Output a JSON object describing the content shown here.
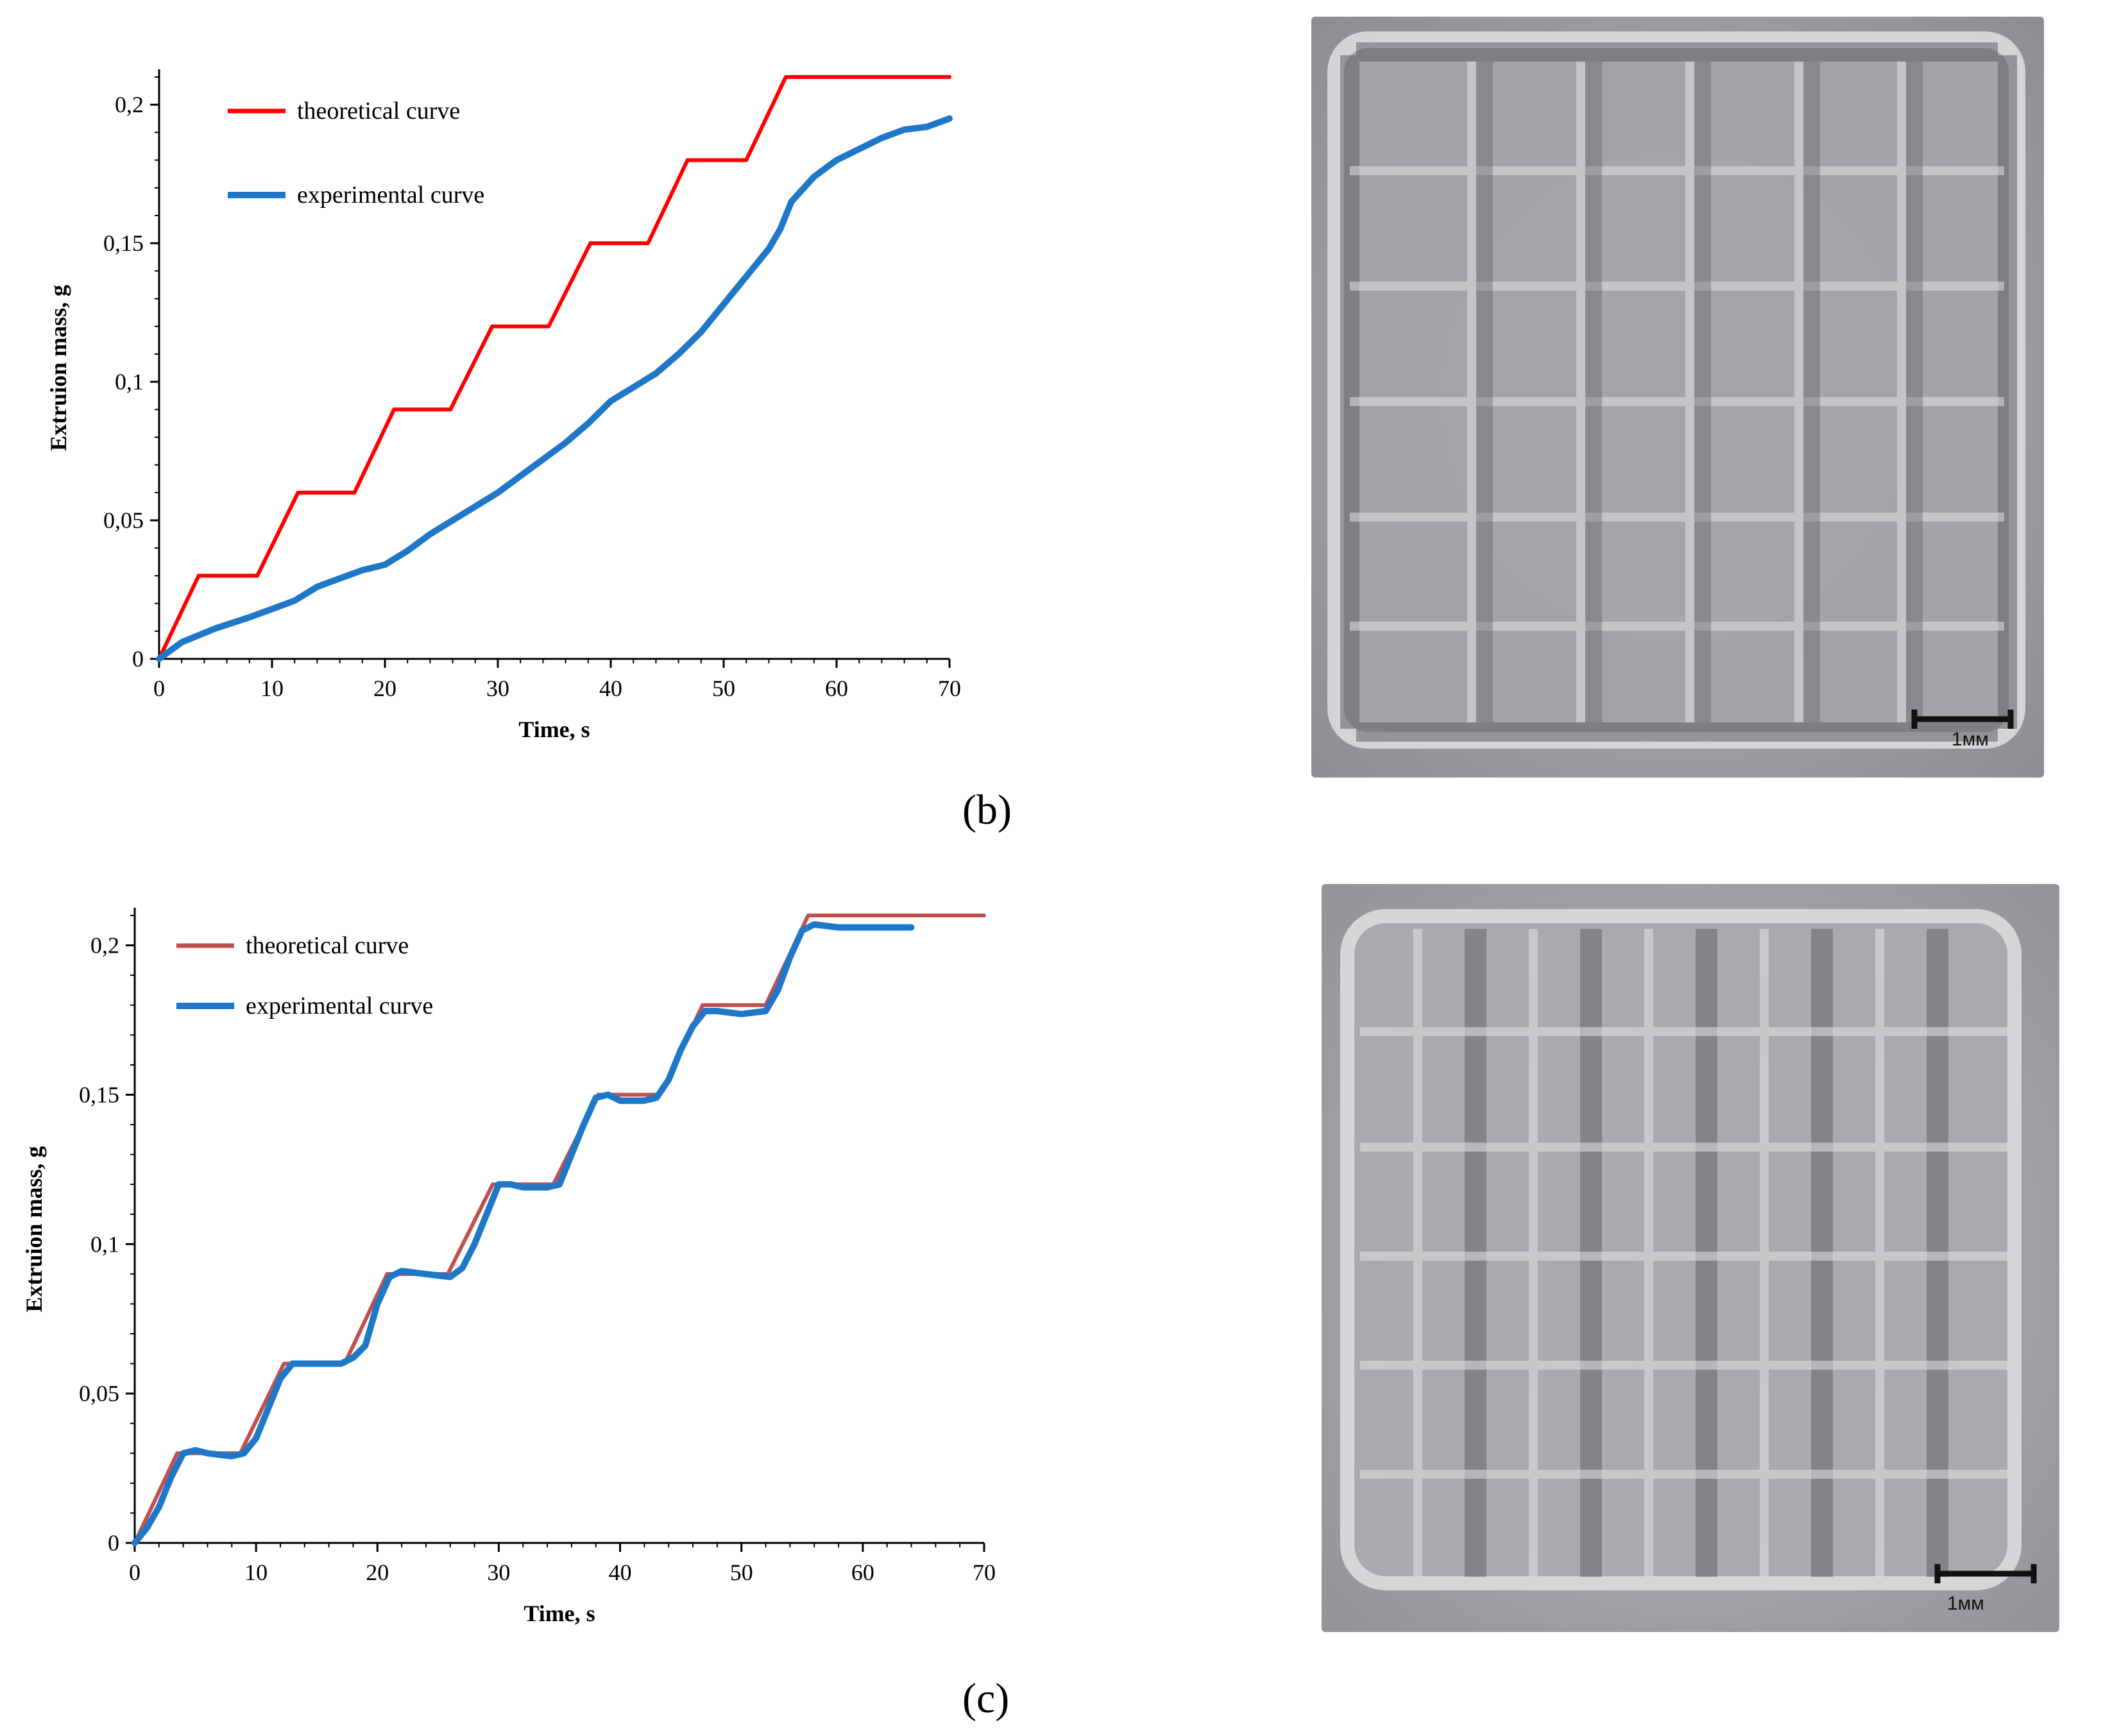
{
  "chart_data": [
    {
      "type": "line",
      "panel": "(b)",
      "title": "",
      "xlabel": "Time, s",
      "ylabel": "Extruion mass, g",
      "xlim": [
        0,
        70
      ],
      "ylim": [
        0,
        0.21
      ],
      "xticks": [
        "0",
        "10",
        "20",
        "30",
        "40",
        "50",
        "60",
        "70"
      ],
      "yticks": [
        "0",
        "0,05",
        "0,1",
        "0,15",
        "0,2"
      ],
      "grid": false,
      "legend_position": "top-left",
      "series": [
        {
          "name": "theoretical curve",
          "color": "#ff0000",
          "x": [
            0,
            3.5,
            8.7,
            12.3,
            17.3,
            20.8,
            25.8,
            29.5,
            34.5,
            38.2,
            43.3,
            46.8,
            52,
            55.5,
            70
          ],
          "y": [
            0,
            0.03,
            0.03,
            0.06,
            0.06,
            0.09,
            0.09,
            0.12,
            0.12,
            0.15,
            0.15,
            0.18,
            0.18,
            0.21,
            0.21
          ]
        },
        {
          "name": "experimental curve",
          "color": "#1f77c8",
          "x": [
            0,
            2,
            5,
            8,
            10,
            12,
            14,
            16,
            18,
            20,
            22,
            24,
            26,
            28,
            30,
            32,
            34,
            36,
            38,
            40,
            42,
            44,
            46,
            48,
            50,
            52,
            54,
            55,
            56,
            58,
            60,
            62,
            64,
            66,
            68,
            70
          ],
          "y": [
            0,
            0.006,
            0.011,
            0.015,
            0.018,
            0.021,
            0.026,
            0.029,
            0.032,
            0.034,
            0.039,
            0.045,
            0.05,
            0.055,
            0.06,
            0.066,
            0.072,
            0.078,
            0.085,
            0.093,
            0.098,
            0.103,
            0.11,
            0.118,
            0.128,
            0.138,
            0.148,
            0.155,
            0.165,
            0.174,
            0.18,
            0.184,
            0.188,
            0.191,
            0.192,
            0.195
          ]
        }
      ]
    },
    {
      "type": "line",
      "panel": "(c)",
      "title": "",
      "xlabel": "Time, s",
      "ylabel": "Extruion mass, g",
      "xlim": [
        0,
        70
      ],
      "ylim": [
        0,
        0.21
      ],
      "xticks": [
        "0",
        "10",
        "20",
        "30",
        "40",
        "50",
        "60",
        "70"
      ],
      "yticks": [
        "0",
        "0,05",
        "0,1",
        "0,15",
        "0,2"
      ],
      "grid": false,
      "legend_position": "top-left",
      "series": [
        {
          "name": "theoretical curve",
          "color": "#c0504d",
          "x": [
            0,
            3.5,
            8.7,
            12.3,
            17.3,
            20.8,
            25.8,
            29.5,
            34.5,
            38.2,
            43.3,
            46.8,
            52,
            55.5,
            70
          ],
          "y": [
            0,
            0.03,
            0.03,
            0.06,
            0.06,
            0.09,
            0.09,
            0.12,
            0.12,
            0.15,
            0.15,
            0.18,
            0.18,
            0.21,
            0.21
          ]
        },
        {
          "name": "experimental curve",
          "color": "#1f77c8",
          "x": [
            0,
            1,
            2,
            3,
            4,
            5,
            6,
            8,
            9,
            10,
            11,
            12,
            13,
            15,
            17,
            18,
            19,
            20,
            21,
            22,
            24,
            26,
            27,
            28,
            29,
            30,
            31,
            32,
            34,
            35,
            36,
            37,
            38,
            39,
            40,
            42,
            43,
            44,
            45,
            46,
            47,
            48,
            50,
            52,
            53,
            54,
            55,
            56,
            58,
            60,
            62,
            64
          ],
          "y": [
            0,
            0.005,
            0.012,
            0.022,
            0.03,
            0.031,
            0.03,
            0.029,
            0.03,
            0.035,
            0.045,
            0.055,
            0.06,
            0.06,
            0.06,
            0.062,
            0.066,
            0.08,
            0.089,
            0.091,
            0.09,
            0.089,
            0.092,
            0.1,
            0.11,
            0.12,
            0.12,
            0.119,
            0.119,
            0.12,
            0.13,
            0.14,
            0.149,
            0.15,
            0.148,
            0.148,
            0.149,
            0.155,
            0.165,
            0.173,
            0.178,
            0.178,
            0.177,
            0.178,
            0.185,
            0.196,
            0.205,
            0.207,
            0.206,
            0.206,
            0.206,
            0.206
          ]
        }
      ]
    }
  ],
  "panel_labels": {
    "b": "(b)",
    "c": "(c)"
  },
  "photos": [
    {
      "name": "printed-scaffold-b",
      "scale_bar_label": "1мм"
    },
    {
      "name": "printed-scaffold-c",
      "scale_bar_label": "1мм"
    }
  ]
}
